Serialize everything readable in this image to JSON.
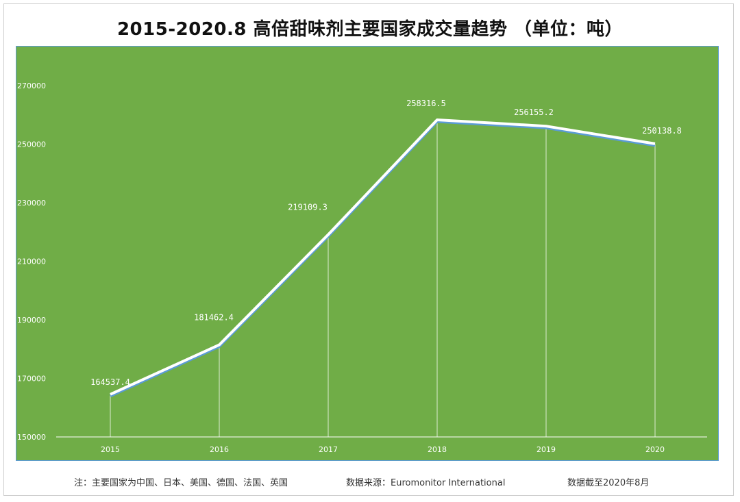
{
  "chart_data": {
    "type": "line",
    "title": "2015-2020.8 高倍甜味剂主要国家成交量趋势 （单位：吨）",
    "x": [
      "2015",
      "2016",
      "2017",
      "2018",
      "2019",
      "2020"
    ],
    "series": [
      {
        "values": [
          164537.4,
          181462.4,
          219109.3,
          258316.5,
          256155.2,
          250138.8
        ]
      }
    ],
    "data_labels": [
      "164537.4",
      "181462.4",
      "219109.3",
      "258316.5",
      "256155.2",
      "250138.8"
    ],
    "y_ticks": [
      "150000",
      "170000",
      "190000",
      "210000",
      "230000",
      "250000",
      "270000"
    ],
    "ylim": [
      150000,
      270000
    ],
    "xlabel": "",
    "ylabel": "",
    "grid": false,
    "legend": "none",
    "colors": {
      "background": "#70ad47",
      "line": "#ffffff",
      "line_shadow": "#5b9bd5",
      "text": "#ffffff"
    }
  },
  "footer": {
    "note": "注：主要国家为中国、日本、美国、德国、法国、英国",
    "source": "数据来源：Euromonitor International",
    "cutoff": "数据截至2020年8月"
  }
}
